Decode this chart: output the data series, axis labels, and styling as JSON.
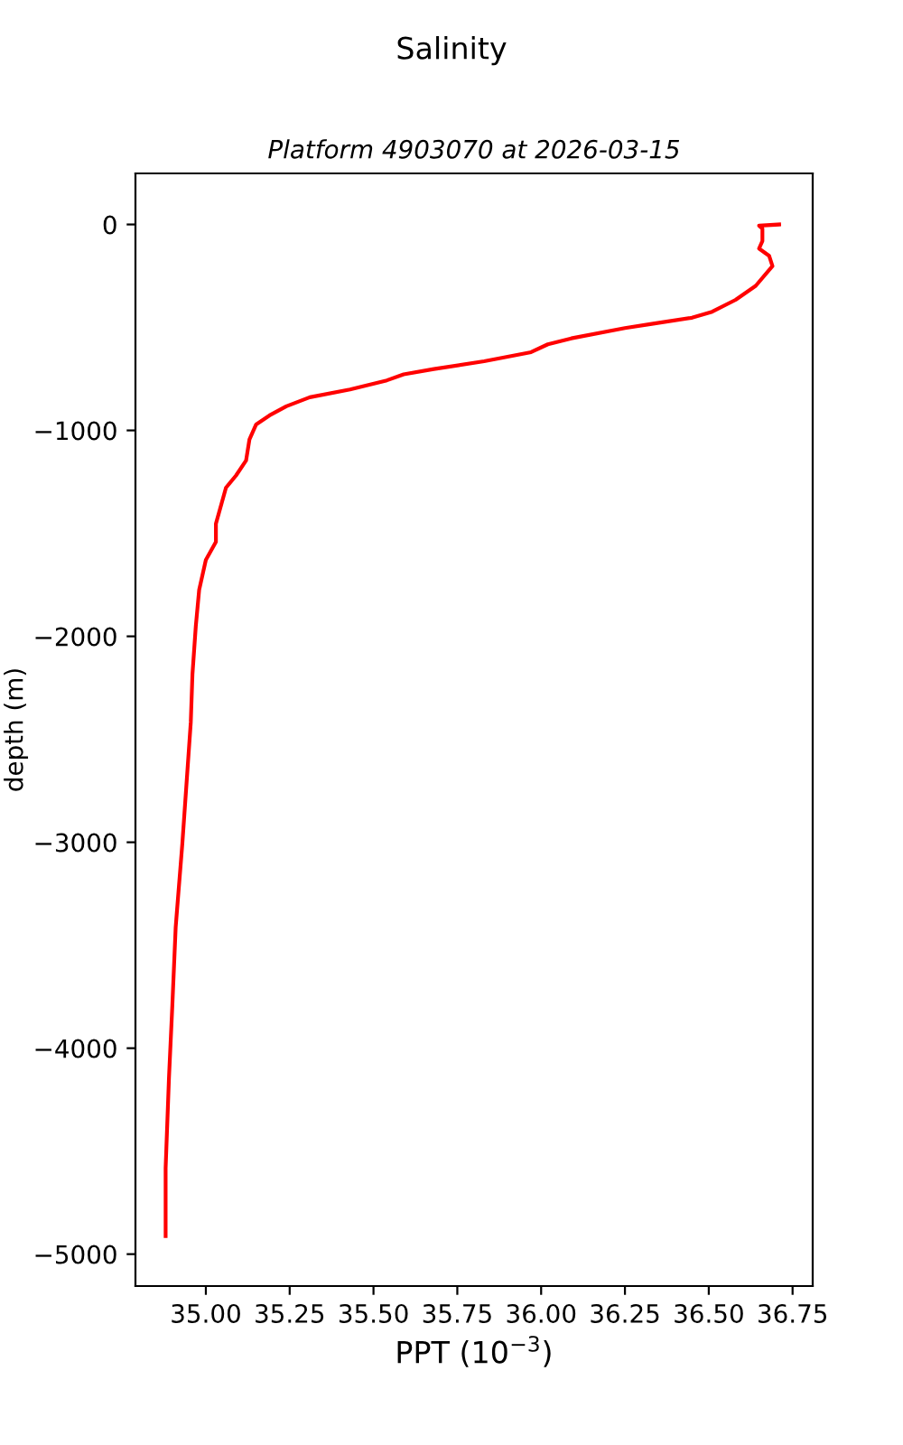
{
  "chart_data": {
    "type": "line",
    "title": "Salinity",
    "subtitle": "Platform 4903070 at 2026-03-15",
    "xlabel": "PPT (10$^{−3}$)",
    "ylabel": "depth (m)",
    "xlim": [
      34.79,
      36.81
    ],
    "xticks": [
      {
        "value": 35.0,
        "label": "35.00"
      },
      {
        "value": 35.25,
        "label": "35.25"
      },
      {
        "value": 35.5,
        "label": "35.50"
      },
      {
        "value": 35.75,
        "label": "35.75"
      },
      {
        "value": 36.0,
        "label": "36.00"
      },
      {
        "value": 36.25,
        "label": "36.25"
      },
      {
        "value": 36.5,
        "label": "36.50"
      },
      {
        "value": 36.75,
        "label": "36.75"
      }
    ],
    "ylim": [
      -5155,
      248
    ],
    "yticks": [
      {
        "value": -5000,
        "label": "−5000"
      },
      {
        "value": -4000,
        "label": "−4000"
      },
      {
        "value": -3000,
        "label": "−3000"
      },
      {
        "value": -2000,
        "label": "−2000"
      },
      {
        "value": -1000,
        "label": "−1000"
      },
      0
    ],
    "grid": false,
    "legend": false,
    "marker": "none",
    "line_style": "solid",
    "series": [
      {
        "color": "#ff0000",
        "x": [
          36.71,
          36.65,
          36.66,
          36.66,
          36.65,
          36.68,
          36.69,
          36.64,
          36.58,
          36.51,
          36.45,
          36.33,
          36.25,
          36.09,
          36.02,
          35.97,
          35.83,
          35.68,
          35.59,
          35.54,
          35.43,
          35.31,
          35.24,
          35.19,
          35.15,
          35.13,
          35.12,
          35.09,
          35.06,
          35.03,
          35.03,
          35.0,
          34.98,
          34.97,
          34.96,
          34.955,
          34.95,
          34.93,
          34.91,
          34.9,
          34.89,
          34.88,
          34.88
        ],
        "values": [
          0,
          -6,
          -20,
          -80,
          -117,
          -152,
          -202,
          -298,
          -366,
          -424,
          -453,
          -483,
          -503,
          -553,
          -582,
          -620,
          -664,
          -702,
          -728,
          -757,
          -801,
          -839,
          -883,
          -927,
          -971,
          -1044,
          -1146,
          -1219,
          -1278,
          -1453,
          -1541,
          -1629,
          -1775,
          -1951,
          -2184,
          -2418,
          -2535,
          -3003,
          -3412,
          -3793,
          -4144,
          -4582,
          -4912
        ]
      }
    ]
  }
}
